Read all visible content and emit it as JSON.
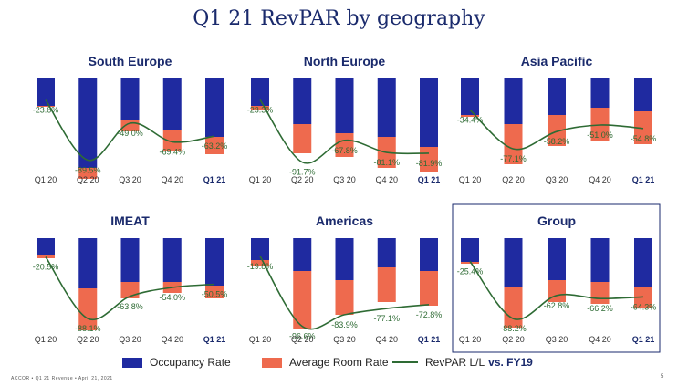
{
  "title": "Q1 21 RevPAR by geography",
  "colors": {
    "occupancy": "#1f2aa0",
    "arr": "#ee6a4e",
    "revpar": "#2e6b34",
    "title": "#1a2a6c"
  },
  "legend": {
    "occupancy": "Occupancy Rate",
    "arr": "Average Room Rate",
    "revpar": "RevPAR L/L",
    "revpar_suffix": "vs. FY19"
  },
  "footer": {
    "left": "ACCOR • Q1 21 Revenue • April 21, 2021",
    "page": "5"
  },
  "chart_data": [
    {
      "type": "bar",
      "title": "South Europe",
      "categories": [
        "Q1 20",
        "Q2 20",
        "Q3 20",
        "Q4 20",
        "Q1 21"
      ],
      "series": [
        {
          "name": "Occupancy Rate",
          "values": [
            -30,
            -98,
            -46,
            -56,
            -64
          ]
        },
        {
          "name": "Average Room Rate",
          "values": [
            -1,
            -12,
            -12,
            -24,
            -19
          ]
        },
        {
          "name": "RevPAR L/L",
          "values": [
            -23.6,
            -89.5,
            -49.0,
            -69.4,
            -63.2
          ]
        }
      ],
      "data_labels": [
        "-23.6%",
        "-89.5%",
        "-49.0%",
        "-69.4%",
        "-63.2%"
      ]
    },
    {
      "type": "bar",
      "title": "North Europe",
      "categories": [
        "Q1 20",
        "Q2 20",
        "Q3 20",
        "Q4 20",
        "Q1 21"
      ],
      "series": [
        {
          "name": "Occupancy Rate",
          "values": [
            -30,
            -50,
            -60,
            -64,
            -75
          ]
        },
        {
          "name": "Average Room Rate",
          "values": [
            -4,
            -32,
            -26,
            -34,
            -28
          ]
        },
        {
          "name": "RevPAR L/L",
          "values": [
            -23.3,
            -91.7,
            -67.8,
            -81.1,
            -81.9
          ]
        }
      ],
      "data_labels": [
        "-23.3%",
        "-91.7%",
        "-67.8%",
        "-81.1%",
        "-81.9%"
      ]
    },
    {
      "type": "bar",
      "title": "Asia Pacific",
      "categories": [
        "Q1 20",
        "Q2 20",
        "Q3 20",
        "Q4 20",
        "Q1 21"
      ],
      "series": [
        {
          "name": "Occupancy Rate",
          "values": [
            -40,
            -50,
            -40,
            -32,
            -36
          ]
        },
        {
          "name": "Average Room Rate",
          "values": [
            -2,
            -44,
            -34,
            -36,
            -36
          ]
        },
        {
          "name": "RevPAR L/L",
          "values": [
            -34.4,
            -77.1,
            -58.2,
            -51.0,
            -54.8
          ]
        }
      ],
      "data_labels": [
        "-34.4%",
        "-77.1%",
        "-58.2%",
        "-51.0%",
        "-54.8%"
      ]
    },
    {
      "type": "bar",
      "title": "IMEAT",
      "categories": [
        "Q1 20",
        "Q2 20",
        "Q3 20",
        "Q4 20",
        "Q1 21"
      ],
      "series": [
        {
          "name": "Occupancy Rate",
          "values": [
            -18,
            -55,
            -48,
            -48,
            -52
          ]
        },
        {
          "name": "Average Room Rate",
          "values": [
            -4,
            -46,
            -18,
            -12,
            -14
          ]
        },
        {
          "name": "RevPAR L/L",
          "values": [
            -20.5,
            -88.1,
            -63.8,
            -54.0,
            -50.5
          ]
        }
      ],
      "data_labels": [
        "-20.5%",
        "-88.1%",
        "-63.8%",
        "-54.0%",
        "-50.5%"
      ]
    },
    {
      "type": "bar",
      "title": "Americas",
      "categories": [
        "Q1 20",
        "Q2 20",
        "Q3 20",
        "Q4 20",
        "Q1 21"
      ],
      "series": [
        {
          "name": "Occupancy Rate",
          "values": [
            -24,
            -36,
            -46,
            -32,
            -36
          ]
        },
        {
          "name": "Average Room Rate",
          "values": [
            -6,
            -64,
            -38,
            -38,
            -38
          ]
        },
        {
          "name": "RevPAR L/L",
          "values": [
            -19.8,
            -96.6,
            -83.9,
            -77.1,
            -72.8
          ]
        }
      ],
      "data_labels": [
        "-19.8%",
        "-96.6%",
        "-83.9%",
        "-77.1%",
        "-72.8%"
      ]
    },
    {
      "type": "bar",
      "title": "Group",
      "categories": [
        "Q1 20",
        "Q2 20",
        "Q3 20",
        "Q4 20",
        "Q1 21"
      ],
      "series": [
        {
          "name": "Occupancy Rate",
          "values": [
            -26,
            -54,
            -46,
            -48,
            -54
          ]
        },
        {
          "name": "Average Room Rate",
          "values": [
            -2,
            -44,
            -24,
            -24,
            -22
          ]
        },
        {
          "name": "RevPAR L/L",
          "values": [
            -25.4,
            -88.2,
            -62.8,
            -66.2,
            -64.3
          ]
        }
      ],
      "data_labels": [
        "-25.4%",
        "-88.2%",
        "-62.8%",
        "-66.2%",
        "-64.3%"
      ]
    }
  ]
}
